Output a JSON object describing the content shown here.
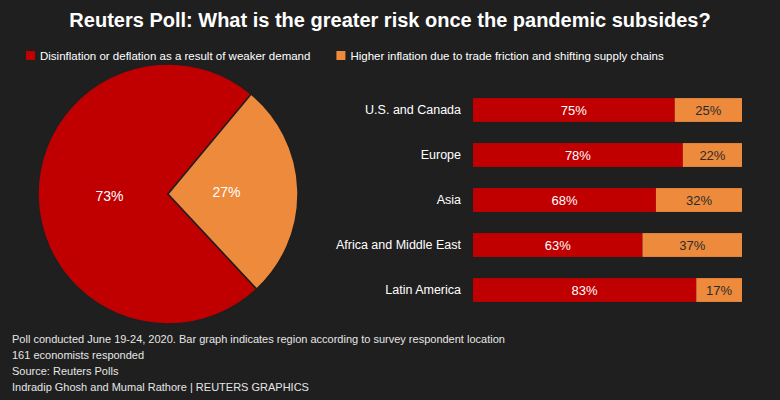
{
  "title": "Reuters Poll: What is the greater risk once the pandemic subsides?",
  "notes": [
    "Poll conducted June 19-24, 2020. Bar graph indicates region according to survey respondent location",
    "161 economists responded",
    "Source: Reuters Polls",
    "Indradip Ghosh and Mumal Rathore | REUTERS GRAPHICS"
  ],
  "chart_data": [
    {
      "type": "pie",
      "values": [
        73,
        27
      ],
      "value_labels": [
        "73%",
        "27%"
      ],
      "colors": [
        "#c00000",
        "#ed8a3c"
      ],
      "data_labels": true
    },
    {
      "type": "bar",
      "orientation": "horizontal",
      "stacked": true,
      "data_labels": true,
      "tick_labels": "y",
      "legend": "top",
      "categories": [
        "U.S. and Canada",
        "Europe",
        "Asia",
        "Africa and Middle East",
        "Latin America"
      ],
      "xlim": [
        0,
        100
      ],
      "series": [
        {
          "name": "Disinflation or deflation as a result of weaker demand",
          "color": "#c00000",
          "values": [
            75,
            78,
            68,
            63,
            83
          ],
          "value_labels": [
            "75%",
            "78%",
            "68%",
            "63%",
            "83%"
          ]
        },
        {
          "name": "Higher inflation due to trade friction and shifting supply chains",
          "color": "#ed8a3c",
          "values": [
            25,
            22,
            32,
            37,
            17
          ],
          "value_labels": [
            "25%",
            "22%",
            "32%",
            "37%",
            "17%"
          ]
        }
      ]
    }
  ]
}
